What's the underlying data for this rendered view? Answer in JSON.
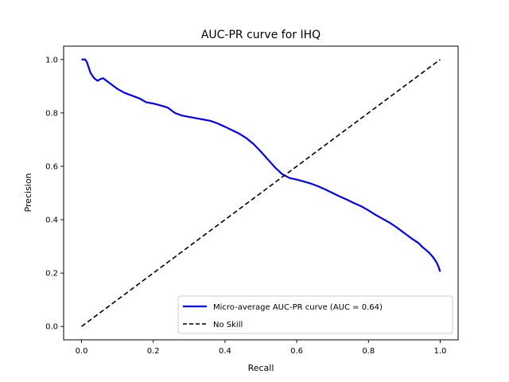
{
  "chart_data": {
    "type": "line",
    "title": "AUC-PR curve for IHQ",
    "xlabel": "Recall",
    "ylabel": "Precision",
    "xlim": [
      -0.05,
      1.05
    ],
    "ylim": [
      -0.05,
      1.05
    ],
    "xticks": [
      {
        "value": 0.0,
        "label": "0.0"
      },
      {
        "value": 0.2,
        "label": "0.2"
      },
      {
        "value": 0.4,
        "label": "0.4"
      },
      {
        "value": 0.6,
        "label": "0.6"
      },
      {
        "value": 0.8,
        "label": "0.8"
      },
      {
        "value": 1.0,
        "label": "1.0"
      }
    ],
    "yticks": [
      {
        "value": 0.0,
        "label": "0.0"
      },
      {
        "value": 0.2,
        "label": "0.2"
      },
      {
        "value": 0.4,
        "label": "0.4"
      },
      {
        "value": 0.6,
        "label": "0.6"
      },
      {
        "value": 0.8,
        "label": "0.8"
      },
      {
        "value": 1.0,
        "label": "1.0"
      }
    ],
    "grid": false,
    "legend_position": "lower-right",
    "series": [
      {
        "name": "Micro-average AUC-PR curve (AUC = 0.64)",
        "color": "#0000ff",
        "style": "solid",
        "x": [
          0.0,
          0.005,
          0.01,
          0.015,
          0.02,
          0.025,
          0.03,
          0.035,
          0.04,
          0.045,
          0.05,
          0.06,
          0.07,
          0.08,
          0.09,
          0.1,
          0.12,
          0.14,
          0.16,
          0.17,
          0.18,
          0.2,
          0.22,
          0.24,
          0.26,
          0.28,
          0.3,
          0.32,
          0.34,
          0.36,
          0.38,
          0.4,
          0.42,
          0.44,
          0.46,
          0.48,
          0.5,
          0.52,
          0.54,
          0.56,
          0.58,
          0.6,
          0.62,
          0.64,
          0.66,
          0.68,
          0.7,
          0.72,
          0.74,
          0.76,
          0.78,
          0.8,
          0.82,
          0.84,
          0.86,
          0.88,
          0.9,
          0.92,
          0.94,
          0.95,
          0.96,
          0.97,
          0.98,
          0.985,
          0.99,
          0.995,
          1.0
        ],
        "y": [
          1.0,
          1.0,
          1.0,
          0.99,
          0.97,
          0.95,
          0.94,
          0.93,
          0.925,
          0.92,
          0.925,
          0.93,
          0.92,
          0.91,
          0.9,
          0.89,
          0.875,
          0.865,
          0.855,
          0.848,
          0.84,
          0.835,
          0.828,
          0.82,
          0.8,
          0.79,
          0.785,
          0.78,
          0.775,
          0.77,
          0.76,
          0.748,
          0.735,
          0.722,
          0.705,
          0.683,
          0.655,
          0.625,
          0.595,
          0.57,
          0.556,
          0.55,
          0.543,
          0.535,
          0.525,
          0.513,
          0.5,
          0.487,
          0.475,
          0.462,
          0.45,
          0.435,
          0.418,
          0.403,
          0.388,
          0.37,
          0.35,
          0.33,
          0.312,
          0.298,
          0.287,
          0.275,
          0.26,
          0.25,
          0.24,
          0.225,
          0.205
        ]
      },
      {
        "name": "No Skill",
        "color": "#000000",
        "style": "dashed",
        "x": [
          0.0,
          1.0
        ],
        "y": [
          0.0,
          1.0
        ]
      }
    ]
  }
}
